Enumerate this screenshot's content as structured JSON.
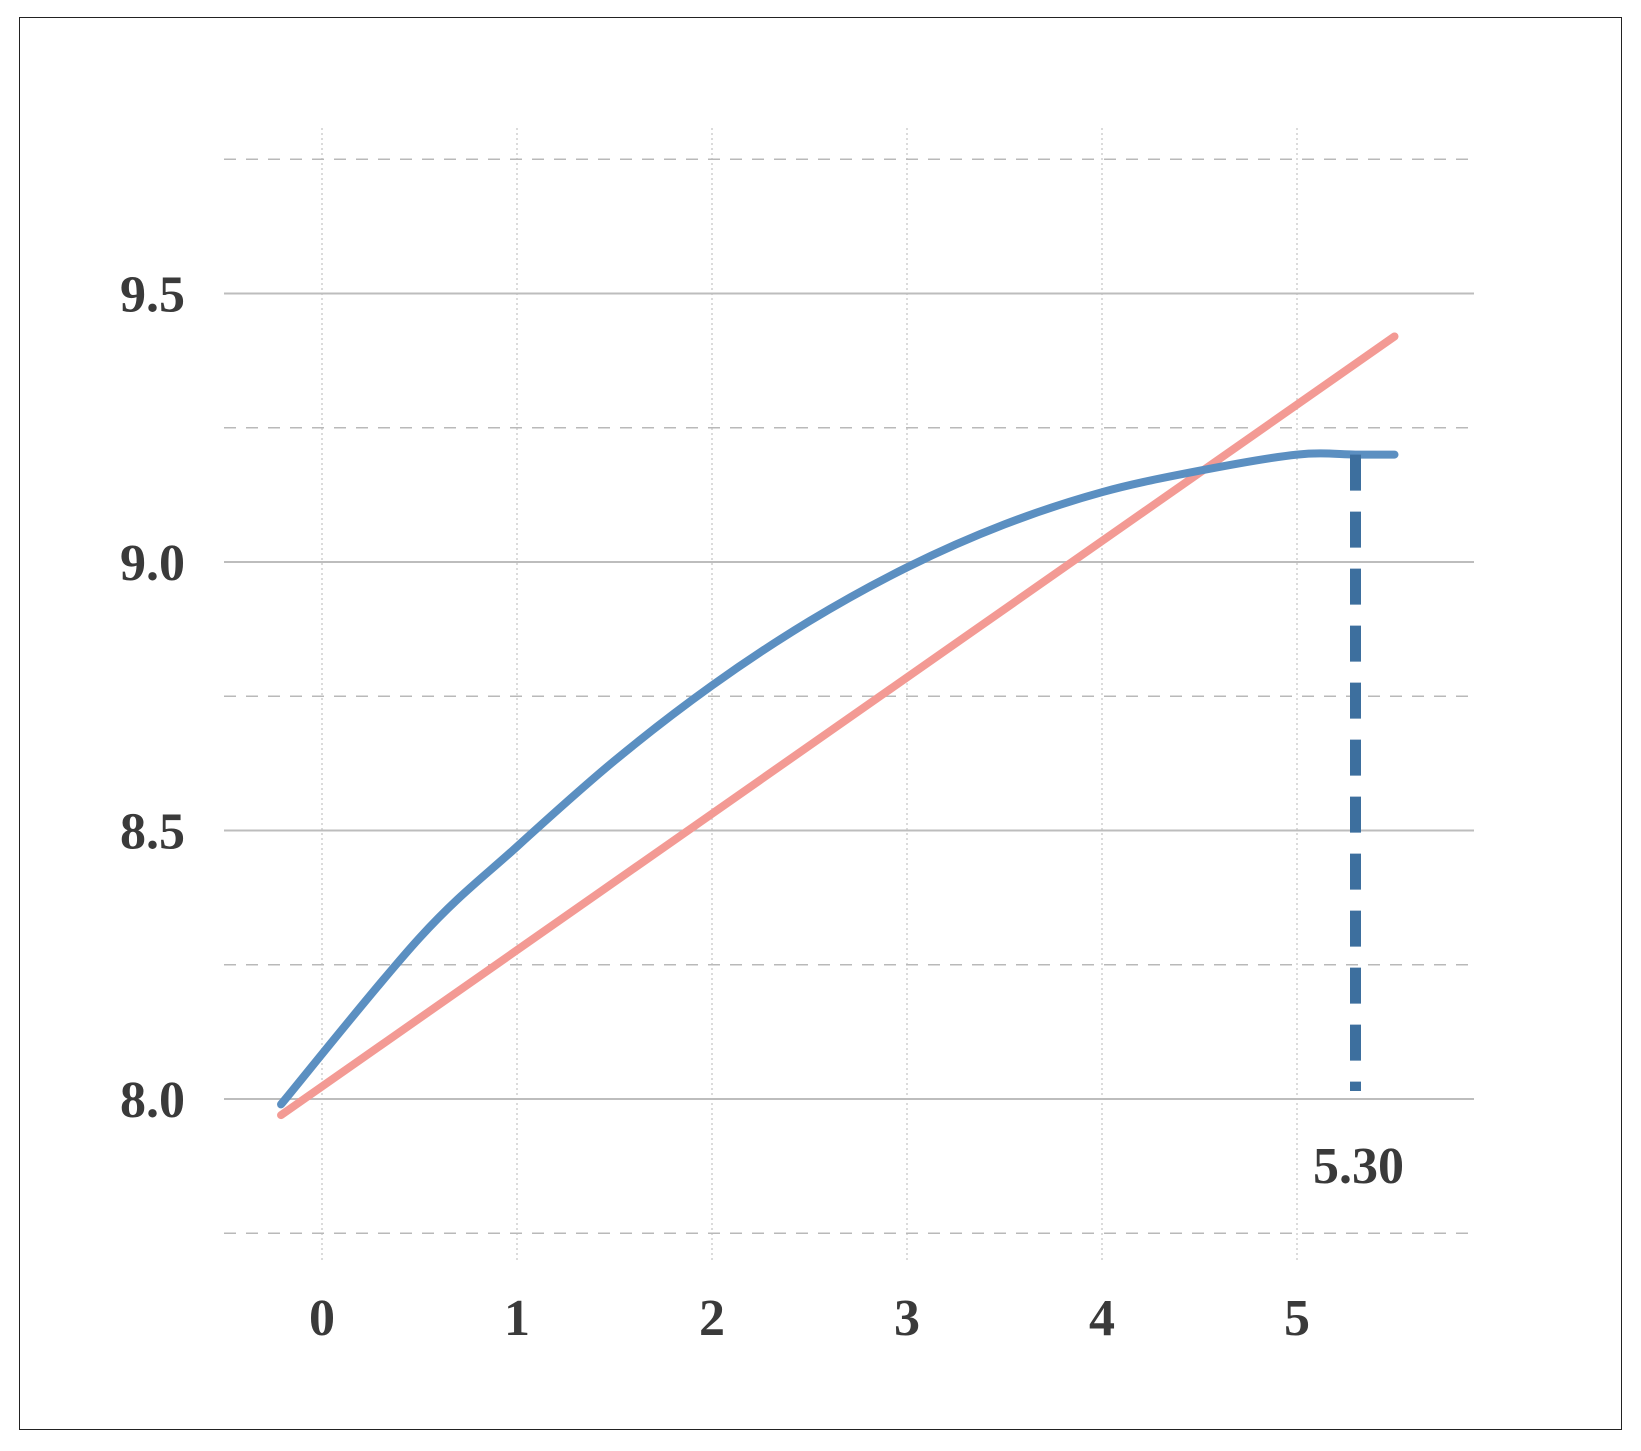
{
  "chart_data": {
    "type": "line",
    "title": "",
    "xlabel": "",
    "ylabel": "",
    "xlim": [
      -0.21,
      5.55
    ],
    "ylim": [
      7.75,
      9.75
    ],
    "x_ticks": [
      0,
      1,
      2,
      3,
      4,
      5
    ],
    "x_tick_labels": [
      "0",
      "1",
      "2",
      "3",
      "4",
      "5"
    ],
    "y_ticks": [
      8.0,
      8.5,
      9.0,
      9.5
    ],
    "y_tick_labels": [
      "8.0",
      "8.5",
      "9.0",
      "9.5"
    ],
    "y_minor_gridlines": [
      7.75,
      8.25,
      8.75,
      9.25,
      9.75
    ],
    "grid": true,
    "legend": "none",
    "series": [
      {
        "color": "#5b8fc1",
        "shape": "concave curve peaking at x = 5.30",
        "points": [
          [
            -0.21,
            7.99
          ],
          [
            0.5,
            8.3
          ],
          [
            1.0,
            8.47
          ],
          [
            1.5,
            8.63
          ],
          [
            2.0,
            8.77
          ],
          [
            2.5,
            8.89
          ],
          [
            3.0,
            8.99
          ],
          [
            3.5,
            9.07
          ],
          [
            4.0,
            9.13
          ],
          [
            4.5,
            9.17
          ],
          [
            5.0,
            9.2
          ],
          [
            5.3,
            9.2
          ],
          [
            5.5,
            9.2
          ]
        ]
      },
      {
        "color": "#f39a94",
        "shape": "straight line",
        "points": [
          [
            -0.21,
            7.97
          ],
          [
            5.5,
            9.42
          ]
        ]
      }
    ],
    "annotations": [
      {
        "type": "vertical-dashed-line",
        "x": 5.3,
        "y_from": 8.0,
        "y_to": 9.2,
        "color": "#3d6f9e",
        "label": "5.30"
      }
    ]
  }
}
